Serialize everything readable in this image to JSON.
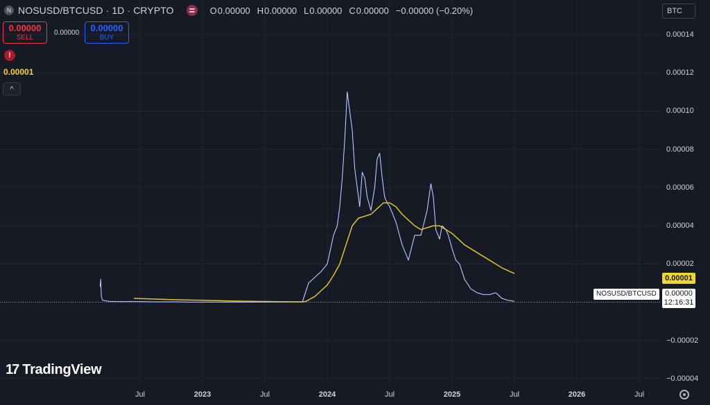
{
  "header": {
    "symbol_icon": "N",
    "title": "NOSUSD/BTCUSD · 1D · CRYPTO",
    "ohlc": [
      {
        "k": "O",
        "v": "0.00000"
      },
      {
        "k": "H",
        "v": "0.00000"
      },
      {
        "k": "L",
        "v": "0.00000"
      },
      {
        "k": "C",
        "v": "0.00000"
      },
      {
        "k": "",
        "v": "−0.00000 (−0.20%)"
      }
    ]
  },
  "trade": {
    "sell_price": "0.00000",
    "sell_label": "SELL",
    "spread": "0.00000",
    "buy_price": "0.00000",
    "buy_label": "BUY"
  },
  "indicator": {
    "value": "0.00001"
  },
  "currency": "BTC",
  "labels": {
    "ma_value": "0.00001",
    "symbol": "NOSUSD/BTCUSD",
    "price": "0.00000",
    "countdown": "12:16:31"
  },
  "logo": {
    "mark": "17",
    "text": "TradingView"
  },
  "icons": {
    "warning": "!",
    "collapse": "^",
    "settings": "gear-icon"
  },
  "colors": {
    "price_line": "#6f8df5",
    "ma_line": "#e4c22e",
    "background": "#161a25"
  },
  "chart_data": {
    "type": "line",
    "yticks": [
      {
        "v": 0.00014,
        "label": "0.00014"
      },
      {
        "v": 0.00012,
        "label": "0.00012"
      },
      {
        "v": 0.0001,
        "label": "0.00010"
      },
      {
        "v": 8e-05,
        "label": "0.00008"
      },
      {
        "v": 6e-05,
        "label": "0.00006"
      },
      {
        "v": 4e-05,
        "label": "0.00004"
      },
      {
        "v": 2e-05,
        "label": "0.00002"
      },
      {
        "v": 0,
        "label": ""
      },
      {
        "v": -2e-05,
        "label": "−0.00002"
      },
      {
        "v": -4e-05,
        "label": "−0.00004"
      }
    ],
    "xticks": [
      {
        "t": 2022.5,
        "label": "Jul",
        "bold": false
      },
      {
        "t": 2023.0,
        "label": "2023",
        "bold": true
      },
      {
        "t": 2023.5,
        "label": "Jul",
        "bold": false
      },
      {
        "t": 2024.0,
        "label": "2024",
        "bold": true
      },
      {
        "t": 2024.5,
        "label": "Jul",
        "bold": false
      },
      {
        "t": 2025.0,
        "label": "2025",
        "bold": true
      },
      {
        "t": 2025.5,
        "label": "Jul",
        "bold": false
      },
      {
        "t": 2026.0,
        "label": "2026",
        "bold": true
      },
      {
        "t": 2026.5,
        "label": "Jul",
        "bold": false
      }
    ],
    "ylim": [
      -4e-05,
      0.00014
    ],
    "xlim": [
      2021.95,
      2026.95
    ],
    "grid": true,
    "last_price": 0.0,
    "series": [
      {
        "key": "price",
        "x": [
          2022.18,
          2022.185,
          2022.19,
          2022.2,
          2022.25,
          2022.3,
          2022.4,
          2022.5,
          2022.6,
          2022.7,
          2022.8,
          2022.9,
          2023.0,
          2023.1,
          2023.2,
          2023.3,
          2023.4,
          2023.5,
          2023.6,
          2023.7,
          2023.8,
          2023.82,
          2023.85,
          2023.9,
          2023.95,
          2024.0,
          2024.05,
          2024.08,
          2024.1,
          2024.12,
          2024.14,
          2024.16,
          2024.18,
          2024.2,
          2024.22,
          2024.24,
          2024.26,
          2024.28,
          2024.3,
          2024.32,
          2024.35,
          2024.38,
          2024.4,
          2024.42,
          2024.44,
          2024.46,
          2024.48,
          2024.5,
          2024.55,
          2024.6,
          2024.65,
          2024.7,
          2024.75,
          2024.8,
          2024.83,
          2024.85,
          2024.87,
          2024.9,
          2024.92,
          2024.95,
          2024.97,
          2025.0,
          2025.03,
          2025.06,
          2025.1,
          2025.15,
          2025.2,
          2025.25,
          2025.3,
          2025.35,
          2025.4,
          2025.45,
          2025.5
        ],
        "y": [
          8e-06,
          1.2e-05,
          3e-06,
          1e-06,
          5e-07,
          3e-07,
          3e-07,
          3e-07,
          2e-07,
          2e-07,
          2e-07,
          1e-07,
          1e-07,
          1e-07,
          1e-07,
          1e-07,
          1e-07,
          1e-07,
          1e-07,
          1e-07,
          1e-07,
          4e-06,
          1e-05,
          1.3e-05,
          1.6e-05,
          2e-05,
          3.5e-05,
          4e-05,
          5e-05,
          6.5e-05,
          8.5e-05,
          0.00011,
          0.0001,
          9e-05,
          7e-05,
          6e-05,
          5e-05,
          6.8e-05,
          6.5e-05,
          5.5e-05,
          4.8e-05,
          6e-05,
          7.5e-05,
          7.8e-05,
          6.5e-05,
          5.5e-05,
          5.2e-05,
          5e-05,
          4.2e-05,
          3e-05,
          2.2e-05,
          3.5e-05,
          3.5e-05,
          4.8e-05,
          6.2e-05,
          5.5e-05,
          3.8e-05,
          3.3e-05,
          4e-05,
          3.8e-05,
          3.5e-05,
          2.8e-05,
          2.2e-05,
          2e-05,
          1.2e-05,
          7e-06,
          5e-06,
          4e-06,
          4e-06,
          5e-06,
          2e-06,
          1e-06,
          5e-07
        ]
      },
      {
        "key": "ma",
        "x": [
          2022.45,
          2022.6,
          2022.8,
          2023.0,
          2023.2,
          2023.4,
          2023.6,
          2023.8,
          2023.83,
          2023.9,
          2023.95,
          2024.0,
          2024.05,
          2024.1,
          2024.15,
          2024.2,
          2024.25,
          2024.3,
          2024.35,
          2024.4,
          2024.45,
          2024.5,
          2024.55,
          2024.6,
          2024.65,
          2024.7,
          2024.75,
          2024.8,
          2024.85,
          2024.9,
          2024.95,
          2025.0,
          2025.05,
          2025.1,
          2025.2,
          2025.3,
          2025.4,
          2025.5
        ],
        "y": [
          2e-06,
          1.7e-06,
          1.3e-06,
          1e-06,
          7e-07,
          5e-07,
          3e-07,
          2e-07,
          5e-07,
          3e-06,
          6e-06,
          9e-06,
          1.4e-05,
          2e-05,
          3e-05,
          4e-05,
          4.4e-05,
          4.5e-05,
          4.6e-05,
          4.9e-05,
          5.2e-05,
          5.2e-05,
          5e-05,
          4.6e-05,
          4.3e-05,
          4e-05,
          3.8e-05,
          3.9e-05,
          4e-05,
          4e-05,
          3.8e-05,
          3.6e-05,
          3.3e-05,
          3e-05,
          2.6e-05,
          2.2e-05,
          1.8e-05,
          1.5e-05
        ]
      }
    ]
  }
}
